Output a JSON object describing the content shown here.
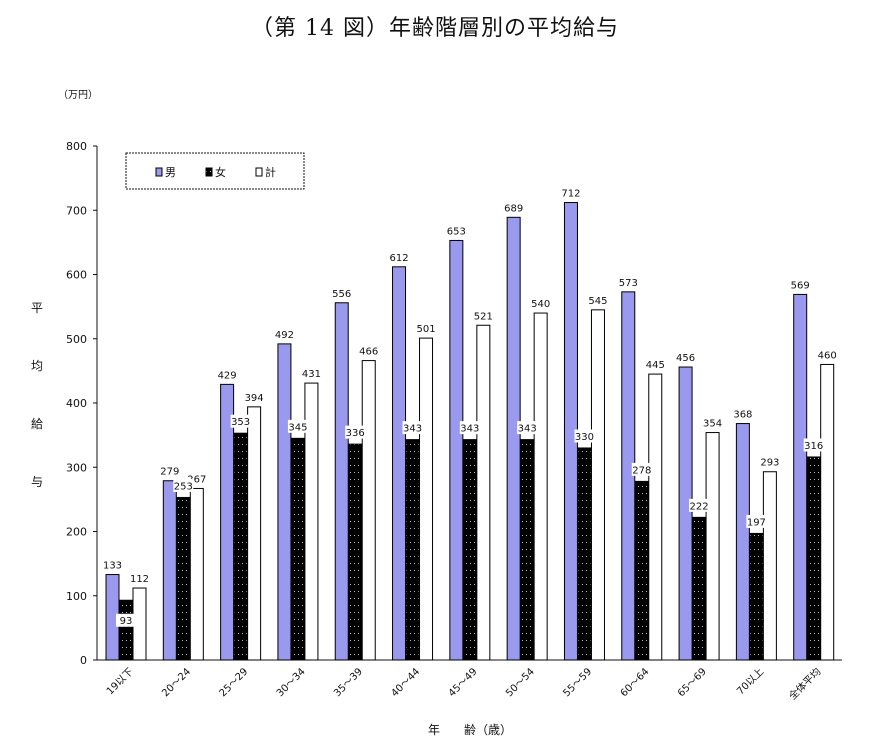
{
  "chart_data": {
    "type": "bar",
    "title": "（第 14 図）年齢階層別の平均給与",
    "unit": "（万円）",
    "ylabel": "平均給与",
    "xlabel": "年　　齢（歳）",
    "ylim": [
      0,
      800
    ],
    "yticks": [
      0,
      100,
      200,
      300,
      400,
      500,
      600,
      700,
      800
    ],
    "grid": false,
    "legend_position": "top-left",
    "categories": [
      "19以下",
      "20～24",
      "25～29",
      "30～34",
      "35～39",
      "40～44",
      "45～49",
      "50～54",
      "55～59",
      "60～64",
      "65～69",
      "70以上",
      "全体平均"
    ],
    "series": [
      {
        "name": "男",
        "color": "#9999ee",
        "values": [
          133,
          279,
          429,
          492,
          556,
          612,
          653,
          689,
          712,
          573,
          456,
          368,
          569
        ]
      },
      {
        "name": "女",
        "color": "#000000",
        "values": [
          93,
          253,
          353,
          345,
          336,
          343,
          343,
          343,
          330,
          278,
          222,
          197,
          316
        ]
      },
      {
        "name": "計",
        "color": "#ffffff",
        "values": [
          112,
          267,
          394,
          431,
          466,
          501,
          521,
          540,
          545,
          445,
          354,
          293,
          460
        ]
      }
    ]
  }
}
